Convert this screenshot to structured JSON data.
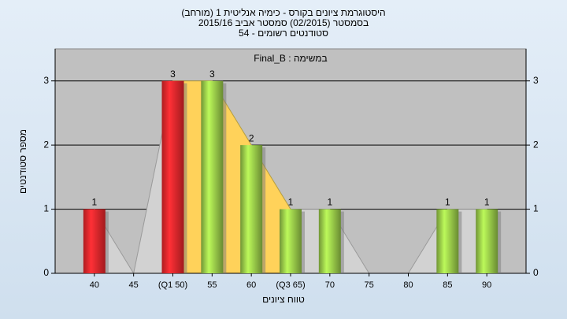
{
  "chart_data": {
    "type": "bar",
    "title": "היסטוגרמת ציונים בקורס - כימיה אנליטית 1 (מורחב)",
    "subtitle": "בסמסטר  (02/2015)  סמסטר אביב 2015/16",
    "note": "סטודנטים רשומים - 54",
    "legend_text": "במשימה : Final_B",
    "x_label": "טווח ציונים",
    "y_label": "מספר סטודנטים",
    "categories": [
      "40",
      "45",
      "(Q1 50)",
      "55",
      "60",
      "(Q3 65)",
      "70",
      "75",
      "80",
      "85",
      "90"
    ],
    "values": [
      1,
      0,
      3,
      3,
      2,
      1,
      1,
      0,
      0,
      1,
      1
    ],
    "colors": [
      "#e8262b",
      "#e8262b",
      "#e8262b",
      "#96c748",
      "#96c748",
      "#96c748",
      "#96c748",
      "#96c748",
      "#96c748",
      "#96c748",
      "#96c748"
    ],
    "ylim": [
      0,
      3.5
    ],
    "yticks": [
      0,
      1,
      2,
      3
    ],
    "grid": true
  }
}
